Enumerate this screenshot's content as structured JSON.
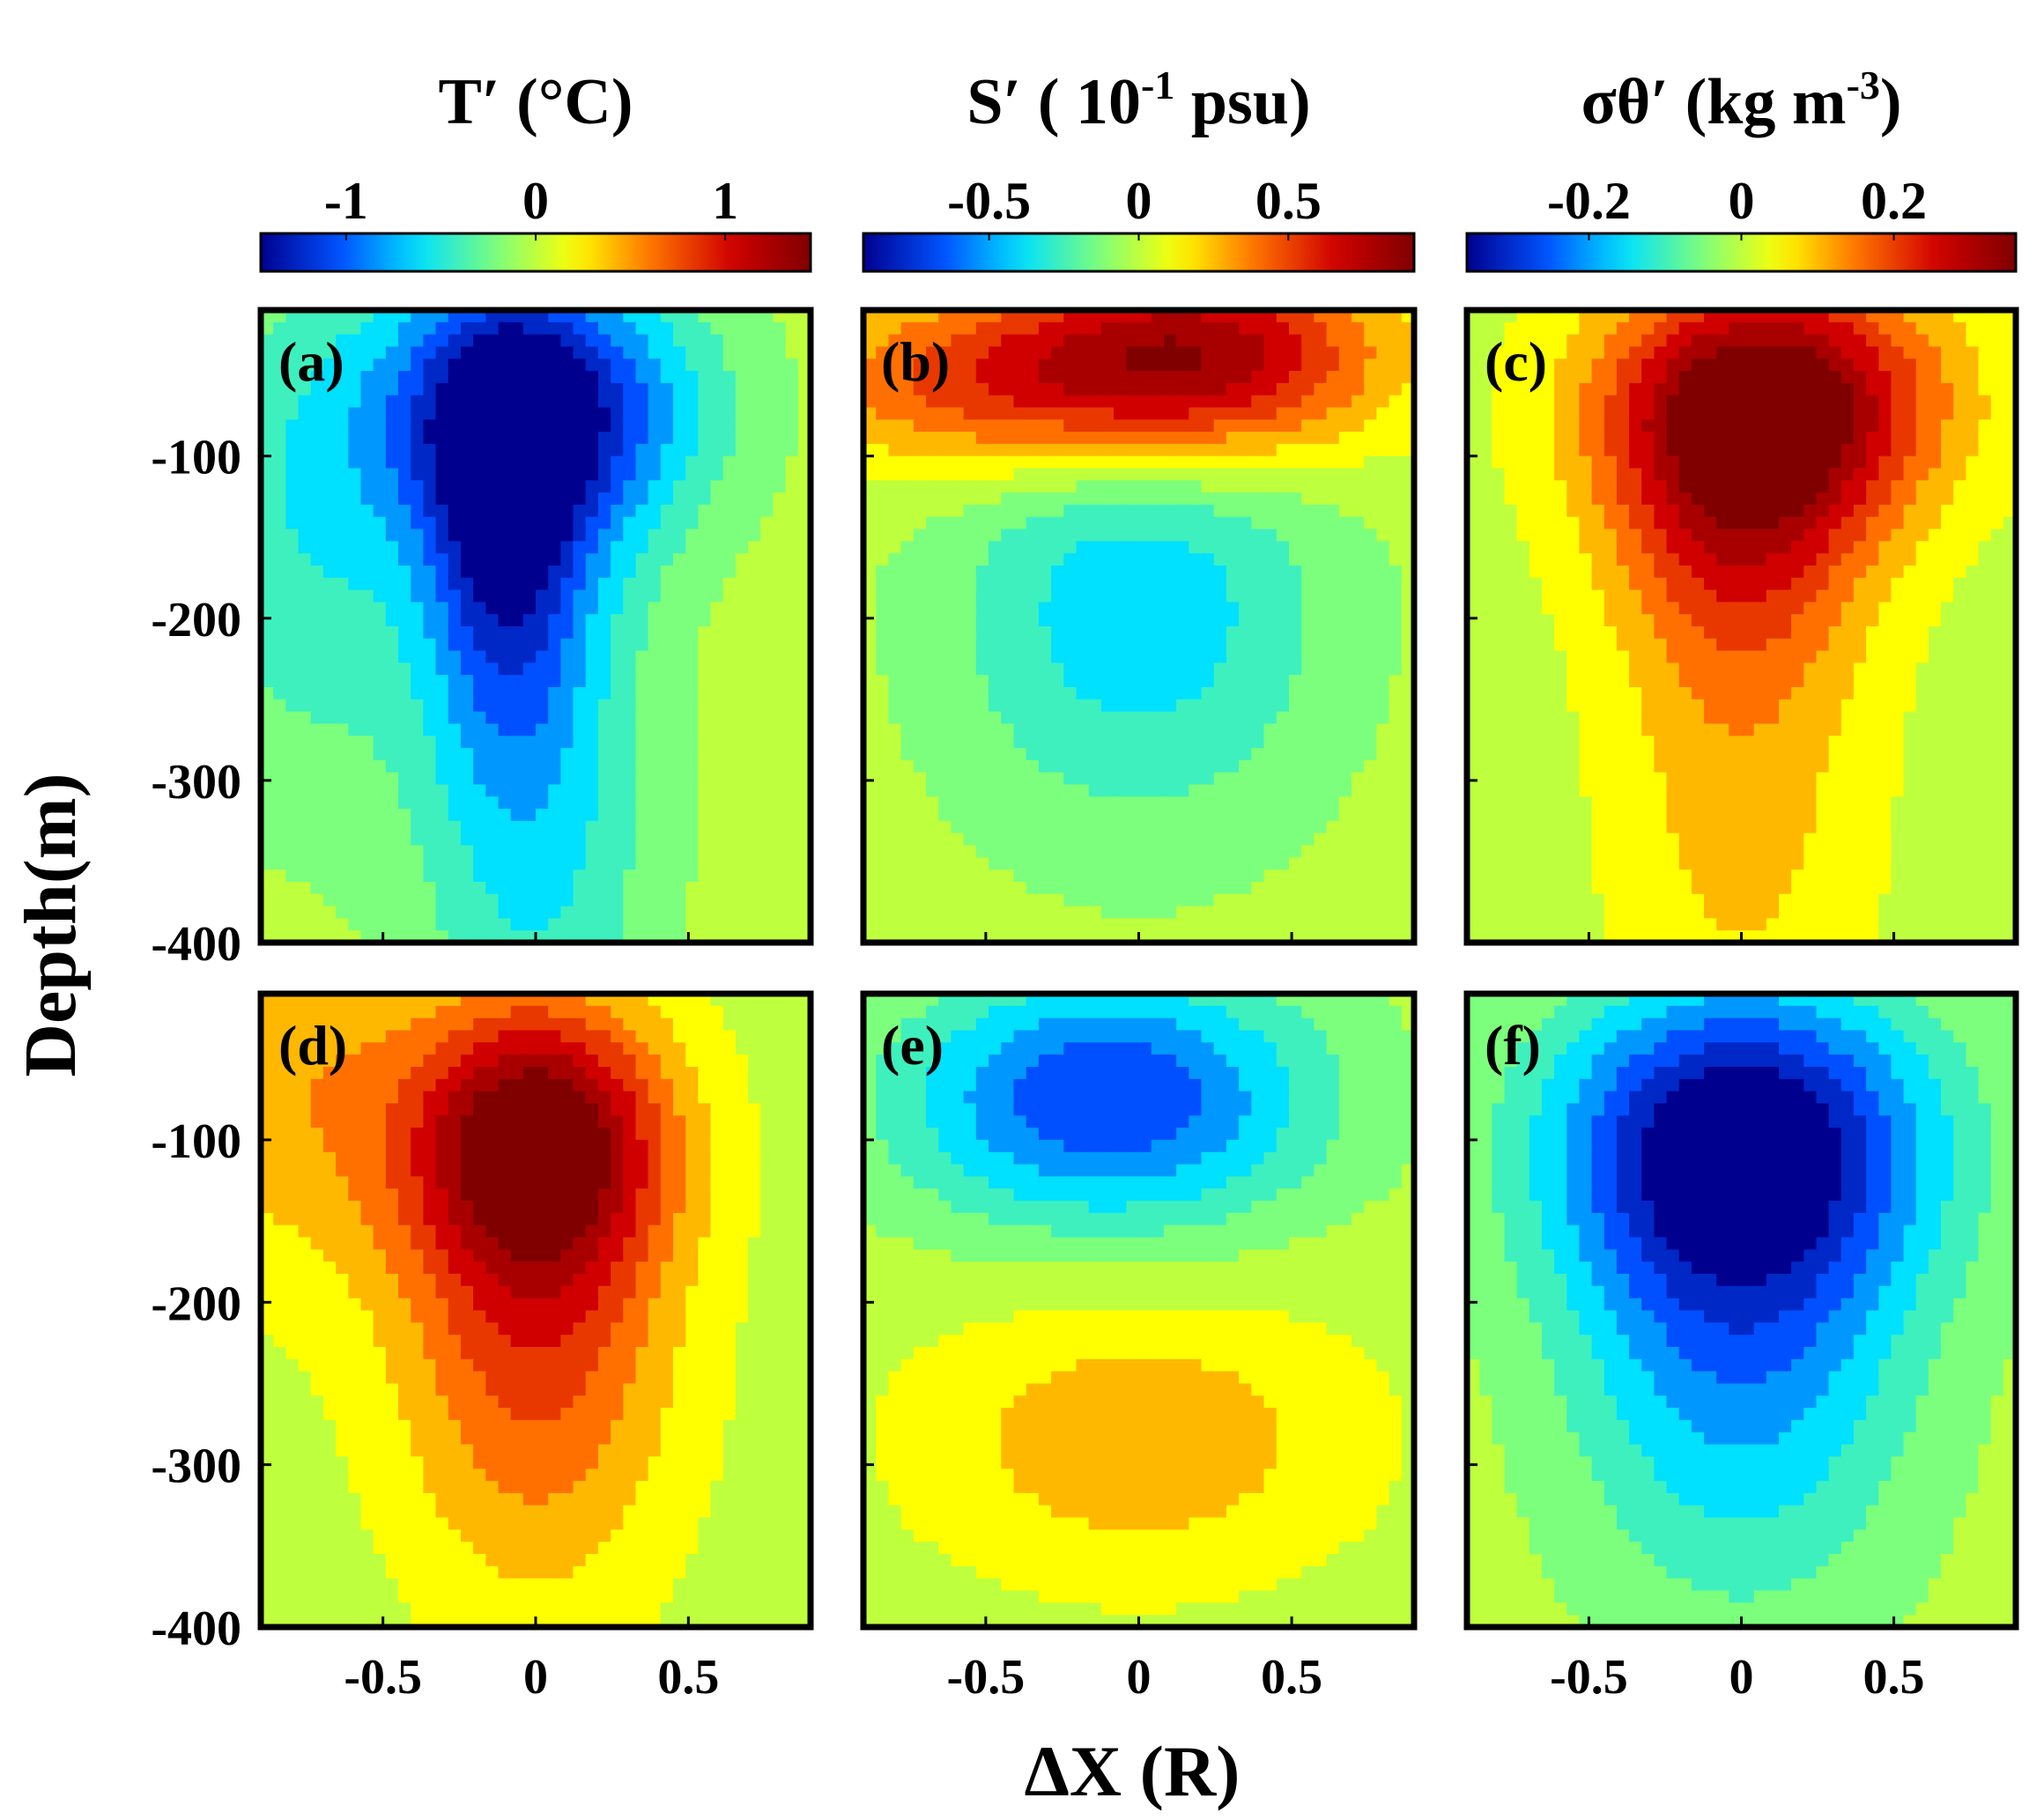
{
  "figure": {
    "y_axis_label": "Depth(m)",
    "x_axis_label": "ΔX (R)",
    "colormap": "jet",
    "colormap_stops": [
      "#00008f",
      "#0050ff",
      "#00e0ff",
      "#7cff7c",
      "#ffff00",
      "#ff7000",
      "#d00000",
      "#800000"
    ]
  },
  "colorbars": [
    {
      "title_main": "T′ (°C)",
      "title_sup": "",
      "title_end": "",
      "ticks": [
        "-1",
        "0",
        "1"
      ],
      "tick_values": [
        -1,
        0,
        1
      ],
      "range": [
        -1.45,
        1.45
      ]
    },
    {
      "title_main": "S′ ( 10",
      "title_sup": "-1",
      "title_end": " psu)",
      "ticks": [
        "-0.5",
        "0",
        "0.5"
      ],
      "tick_values": [
        -0.5,
        0,
        0.5
      ],
      "range": [
        -0.92,
        0.92
      ]
    },
    {
      "title_main": "σθ′ (kg m",
      "title_sup": "-3",
      "title_end": ")",
      "ticks": [
        "-0.2",
        "0",
        "0.2"
      ],
      "tick_values": [
        -0.2,
        0,
        0.2
      ],
      "range": [
        -0.36,
        0.36
      ]
    }
  ],
  "chart_data": [
    {
      "type": "heatmap",
      "panel": "(a)",
      "variable": "T′",
      "units": "°C",
      "x_range": [
        -0.9,
        0.9
      ],
      "y_range": [
        -400,
        -10
      ],
      "x_ticks": [
        -0.5,
        0,
        0.5
      ],
      "y_ticks": [
        -100,
        -200,
        -300,
        -400
      ],
      "features": [
        {
          "x": 0.0,
          "depth": -70,
          "value": -1.3,
          "sx": 0.38,
          "sy": 60
        },
        {
          "x": -0.1,
          "depth": -150,
          "value": -0.9,
          "sx": 0.18,
          "sy": 90
        },
        {
          "x": 0.0,
          "depth": -300,
          "value": -0.6,
          "sx": 0.28,
          "sy": 150
        },
        {
          "x": -0.75,
          "depth": -150,
          "value": -0.45,
          "sx": 0.3,
          "sy": 120
        }
      ]
    },
    {
      "type": "heatmap",
      "panel": "(b)",
      "variable": "S′",
      "units": "10^-1 psu",
      "x_range": [
        -0.9,
        0.9
      ],
      "y_range": [
        -400,
        -10
      ],
      "x_ticks": [
        -0.5,
        0,
        0.5
      ],
      "y_ticks": [
        -100,
        -200,
        -300,
        -400
      ],
      "features": [
        {
          "x": 0.2,
          "depth": -40,
          "value": 0.85,
          "sx": 0.42,
          "sy": 45
        },
        {
          "x": -0.5,
          "depth": -55,
          "value": 0.5,
          "sx": 0.45,
          "sy": 40
        },
        {
          "x": 0.0,
          "depth": -190,
          "value": -0.42,
          "sx": 0.45,
          "sy": 100
        }
      ]
    },
    {
      "type": "heatmap",
      "panel": "(c)",
      "variable": "σθ′",
      "units": "kg m^-3",
      "x_range": [
        -0.9,
        0.9
      ],
      "y_range": [
        -400,
        -10
      ],
      "x_ticks": [
        -0.5,
        0,
        0.5
      ],
      "y_ticks": [
        -100,
        -200,
        -300,
        -400
      ],
      "features": [
        {
          "x": 0.1,
          "depth": -65,
          "value": 0.34,
          "sx": 0.4,
          "sy": 55
        },
        {
          "x": 0.0,
          "depth": -140,
          "value": 0.18,
          "sx": 0.3,
          "sy": 70
        },
        {
          "x": 0.0,
          "depth": -300,
          "value": 0.1,
          "sx": 0.3,
          "sy": 130
        }
      ]
    },
    {
      "type": "heatmap",
      "panel": "(d)",
      "variable": "T′",
      "units": "°C",
      "x_range": [
        -0.9,
        0.9
      ],
      "y_range": [
        -400,
        -10
      ],
      "x_ticks": [
        -0.5,
        0,
        0.5
      ],
      "y_ticks": [
        -100,
        -200,
        -300,
        -400
      ],
      "features": [
        {
          "x": 0.0,
          "depth": -100,
          "value": 1.35,
          "sx": 0.3,
          "sy": 60
        },
        {
          "x": 0.0,
          "depth": -220,
          "value": 0.8,
          "sx": 0.32,
          "sy": 110
        },
        {
          "x": -0.8,
          "depth": -60,
          "value": 0.45,
          "sx": 0.3,
          "sy": 90
        }
      ]
    },
    {
      "type": "heatmap",
      "panel": "(e)",
      "variable": "S′",
      "units": "10^-1 psu",
      "x_range": [
        -0.9,
        0.9
      ],
      "y_range": [
        -400,
        -10
      ],
      "x_ticks": [
        -0.5,
        0,
        0.5
      ],
      "y_ticks": [
        -100,
        -200,
        -300,
        -400
      ],
      "features": [
        {
          "x": -0.1,
          "depth": -75,
          "value": -0.72,
          "sx": 0.48,
          "sy": 55
        },
        {
          "x": 0.0,
          "depth": -285,
          "value": 0.3,
          "sx": 0.5,
          "sy": 60
        }
      ]
    },
    {
      "type": "heatmap",
      "panel": "(f)",
      "variable": "σθ′",
      "units": "kg m^-3",
      "x_range": [
        -0.9,
        0.9
      ],
      "y_range": [
        -400,
        -10
      ],
      "x_ticks": [
        -0.5,
        0,
        0.5
      ],
      "y_ticks": [
        -100,
        -200,
        -300,
        -400
      ],
      "features": [
        {
          "x": 0.0,
          "depth": -100,
          "value": -0.34,
          "sx": 0.45,
          "sy": 70
        },
        {
          "x": 0.0,
          "depth": -230,
          "value": -0.2,
          "sx": 0.4,
          "sy": 110
        }
      ]
    }
  ]
}
